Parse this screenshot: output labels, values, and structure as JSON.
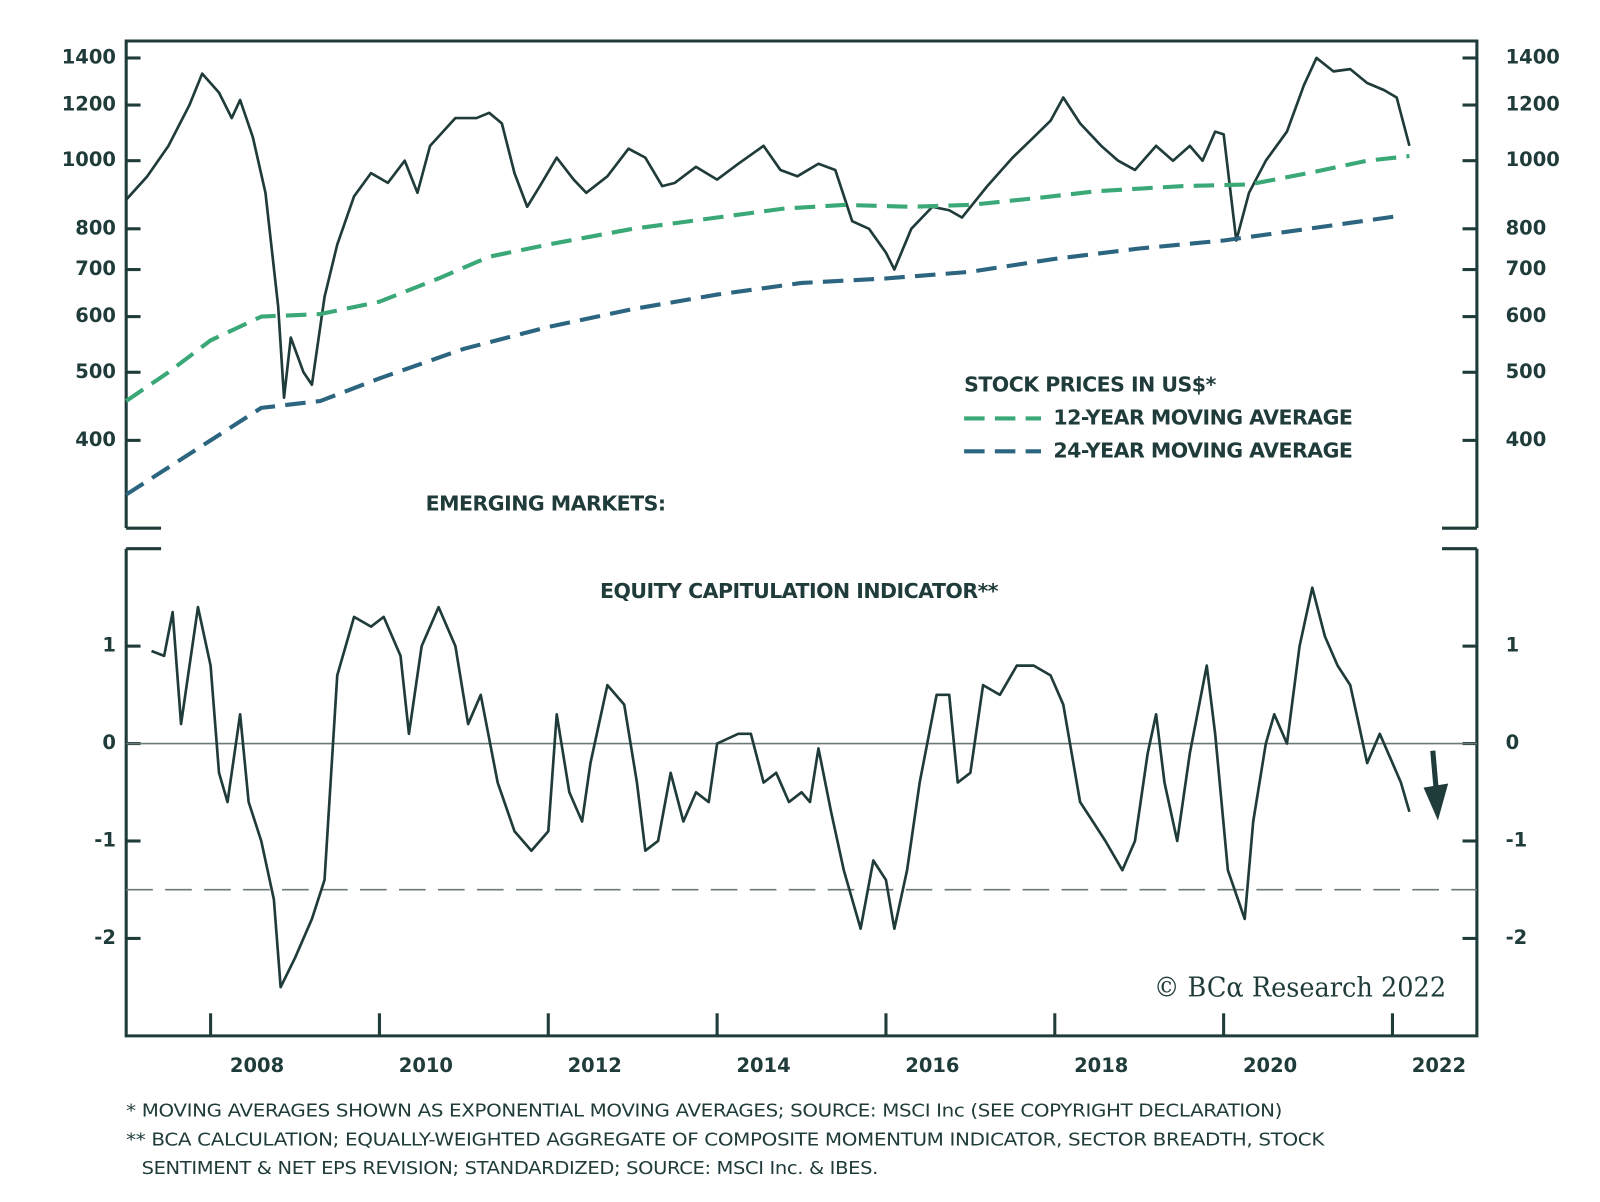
{
  "chart_data": [
    {
      "type": "line",
      "title": "EMERGING MARKETS:",
      "log_scale": true,
      "xlim": [
        2007,
        2023
      ],
      "ylim": [
        300,
        1480
      ],
      "yticks": [
        400,
        500,
        600,
        700,
        800,
        1000,
        1200,
        1400
      ],
      "series": [
        {
          "name": "STOCK PRICES IN US$*",
          "color": "#1f3b3a",
          "dashed": false,
          "x": [
            2007.0,
            2007.25,
            2007.5,
            2007.75,
            2007.9,
            2008.1,
            2008.25,
            2008.35,
            2008.5,
            2008.65,
            2008.8,
            2008.87,
            2008.95,
            2009.1,
            2009.2,
            2009.35,
            2009.5,
            2009.7,
            2009.9,
            2010.1,
            2010.3,
            2010.45,
            2010.6,
            2010.9,
            2011.15,
            2011.3,
            2011.45,
            2011.6,
            2011.75,
            2011.9,
            2012.1,
            2012.3,
            2012.45,
            2012.7,
            2012.95,
            2013.15,
            2013.35,
            2013.5,
            2013.75,
            2014.0,
            2014.25,
            2014.55,
            2014.75,
            2014.95,
            2015.2,
            2015.4,
            2015.6,
            2015.8,
            2016.0,
            2016.1,
            2016.3,
            2016.55,
            2016.75,
            2016.9,
            2017.2,
            2017.5,
            2017.75,
            2017.95,
            2018.1,
            2018.3,
            2018.55,
            2018.75,
            2018.95,
            2019.2,
            2019.4,
            2019.6,
            2019.75,
            2019.9,
            2020.0,
            2020.15,
            2020.3,
            2020.5,
            2020.75,
            2020.95,
            2021.1,
            2021.3,
            2021.5,
            2021.7,
            2021.9,
            2022.05,
            2022.2
          ],
          "values": [
            880,
            950,
            1050,
            1200,
            1330,
            1250,
            1150,
            1220,
            1080,
            900,
            620,
            460,
            560,
            500,
            480,
            640,
            760,
            890,
            960,
            930,
            1000,
            900,
            1050,
            1150,
            1150,
            1170,
            1130,
            960,
            860,
            920,
            1010,
            940,
            900,
            950,
            1040,
            1010,
            920,
            930,
            980,
            940,
            990,
            1050,
            970,
            950,
            990,
            970,
            820,
            800,
            740,
            700,
            800,
            860,
            850,
            830,
            920,
            1010,
            1080,
            1140,
            1230,
            1130,
            1050,
            1000,
            970,
            1050,
            1000,
            1050,
            1000,
            1100,
            1090,
            770,
            900,
            1000,
            1100,
            1280,
            1400,
            1340,
            1350,
            1290,
            1260,
            1230,
            1050
          ]
        },
        {
          "name": "12-YEAR MOVING AVERAGE",
          "color": "#3aa877",
          "dashed": true,
          "x": [
            2007.0,
            2007.5,
            2008.0,
            2008.6,
            2009.3,
            2010.0,
            2010.7,
            2011.3,
            2012.0,
            2013.0,
            2014.0,
            2014.8,
            2015.5,
            2016.3,
            2017.0,
            2017.8,
            2018.5,
            2019.5,
            2020.3,
            2021.0,
            2021.7,
            2022.2
          ],
          "values": [
            455,
            500,
            555,
            600,
            605,
            630,
            680,
            730,
            760,
            800,
            830,
            855,
            865,
            860,
            865,
            885,
            905,
            920,
            925,
            960,
            1000,
            1015
          ]
        },
        {
          "name": "24-YEAR MOVING AVERAGE",
          "color": "#2c6580",
          "dashed": true,
          "x": [
            2007.0,
            2008.0,
            2008.6,
            2009.3,
            2010.0,
            2011.0,
            2012.0,
            2013.0,
            2014.0,
            2015.0,
            2016.0,
            2017.0,
            2018.0,
            2019.0,
            2020.0,
            2021.0,
            2022.1
          ],
          "values": [
            335,
            400,
            445,
            455,
            490,
            540,
            580,
            615,
            645,
            670,
            680,
            695,
            725,
            750,
            770,
            800,
            835
          ]
        }
      ]
    },
    {
      "type": "line",
      "title": "EQUITY CAPITULATION INDICATOR**",
      "xlim": [
        2007,
        2023
      ],
      "ylim": [
        -3,
        2
      ],
      "yticks": [
        -2,
        -1,
        0,
        1
      ],
      "xticks": [
        2008,
        2010,
        2012,
        2014,
        2016,
        2018,
        2020,
        2022
      ],
      "reference_lines": [
        {
          "value": 0,
          "dashed": false
        },
        {
          "value": -1.5,
          "dashed": true
        }
      ],
      "annotation": "© BCα Research 2022",
      "series": [
        {
          "color": "#1f3b3a",
          "x": [
            2007.3,
            2007.45,
            2007.55,
            2007.65,
            2007.85,
            2008.0,
            2008.1,
            2008.2,
            2008.35,
            2008.45,
            2008.6,
            2008.75,
            2008.83,
            2009.0,
            2009.2,
            2009.35,
            2009.5,
            2009.7,
            2009.9,
            2010.05,
            2010.25,
            2010.35,
            2010.5,
            2010.7,
            2010.9,
            2011.05,
            2011.2,
            2011.4,
            2011.6,
            2011.8,
            2012.0,
            2012.1,
            2012.25,
            2012.4,
            2012.5,
            2012.7,
            2012.9,
            2013.05,
            2013.15,
            2013.3,
            2013.45,
            2013.6,
            2013.75,
            2013.9,
            2014.0,
            2014.25,
            2014.4,
            2014.55,
            2014.7,
            2014.85,
            2015.0,
            2015.1,
            2015.2,
            2015.35,
            2015.5,
            2015.7,
            2015.85,
            2016.0,
            2016.1,
            2016.25,
            2016.4,
            2016.6,
            2016.75,
            2016.85,
            2017.0,
            2017.15,
            2017.35,
            2017.55,
            2017.75,
            2017.95,
            2018.1,
            2018.3,
            2018.45,
            2018.6,
            2018.8,
            2018.95,
            2019.1,
            2019.2,
            2019.3,
            2019.45,
            2019.6,
            2019.8,
            2019.9,
            2020.05,
            2020.25,
            2020.35,
            2020.5,
            2020.6,
            2020.75,
            2020.9,
            2021.05,
            2021.2,
            2021.35,
            2021.5,
            2021.6,
            2021.7,
            2021.85,
            2022.0,
            2022.1,
            2022.2
          ],
          "values": [
            0.95,
            0.9,
            1.35,
            0.2,
            1.4,
            0.8,
            -0.3,
            -0.6,
            0.3,
            -0.6,
            -1.0,
            -1.6,
            -2.5,
            -2.2,
            -1.8,
            -1.4,
            0.7,
            1.3,
            1.2,
            1.3,
            0.9,
            0.1,
            1.0,
            1.4,
            1.0,
            0.2,
            0.5,
            -0.4,
            -0.9,
            -1.1,
            -0.9,
            0.3,
            -0.5,
            -0.8,
            -0.2,
            0.6,
            0.4,
            -0.4,
            -1.1,
            -1.0,
            -0.3,
            -0.8,
            -0.5,
            -0.6,
            0.0,
            0.1,
            0.1,
            -0.4,
            -0.3,
            -0.6,
            -0.5,
            -0.6,
            -0.05,
            -0.7,
            -1.3,
            -1.9,
            -1.2,
            -1.4,
            -1.9,
            -1.3,
            -0.4,
            0.5,
            0.5,
            -0.4,
            -0.3,
            0.6,
            0.5,
            0.8,
            0.8,
            0.7,
            0.4,
            -0.6,
            -0.8,
            -1.0,
            -1.3,
            -1.0,
            -0.1,
            0.3,
            -0.4,
            -1.0,
            -0.1,
            0.8,
            0.1,
            -1.3,
            -1.8,
            -0.8,
            0.0,
            0.3,
            0.0,
            1.0,
            1.6,
            1.1,
            0.8,
            0.6,
            0.2,
            -0.2,
            0.1,
            -0.2,
            -0.4,
            -0.7
          ]
        }
      ]
    }
  ],
  "footnotes": [
    "* MOVING AVERAGES SHOWN AS EXPONENTIAL MOVING AVERAGES; SOURCE: MSCI Inc (SEE COPYRIGHT DECLARATION)",
    "** BCA CALCULATION; EQUALLY-WEIGHTED AGGREGATE OF COMPOSITE MOMENTUM INDICATOR, SECTOR BREADTH, STOCK",
    "SENTIMENT & NET EPS REVISION; STANDARDIZED; SOURCE: MSCI Inc. & IBES."
  ]
}
